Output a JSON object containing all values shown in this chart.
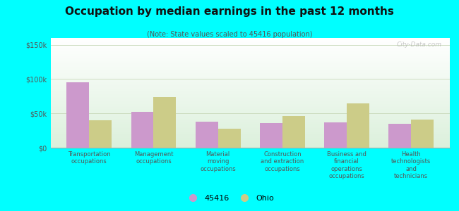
{
  "title": "Occupation by median earnings in the past 12 months",
  "subtitle": "(Note: State values scaled to 45416 population)",
  "categories": [
    "Transportation\noccupations",
    "Management\noccupations",
    "Material\nmoving\noccupations",
    "Construction\nand extraction\noccupations",
    "Business and\nfinancial\noperations\noccupations",
    "Health\ntechnologists\nand\ntechnicians"
  ],
  "values_45416": [
    95000,
    52000,
    38000,
    36000,
    37000,
    35000
  ],
  "values_ohio": [
    40000,
    74000,
    28000,
    46000,
    65000,
    41000
  ],
  "color_45416": "#cc99cc",
  "color_ohio": "#cccc88",
  "background_color": "#00ffff",
  "ylim": [
    0,
    160000
  ],
  "yticks": [
    0,
    50000,
    100000,
    150000
  ],
  "ytick_labels": [
    "$0",
    "$50k",
    "$100k",
    "$150k"
  ],
  "bar_width": 0.35,
  "legend_labels": [
    "45416",
    "Ohio"
  ],
  "watermark": "City-Data.com"
}
